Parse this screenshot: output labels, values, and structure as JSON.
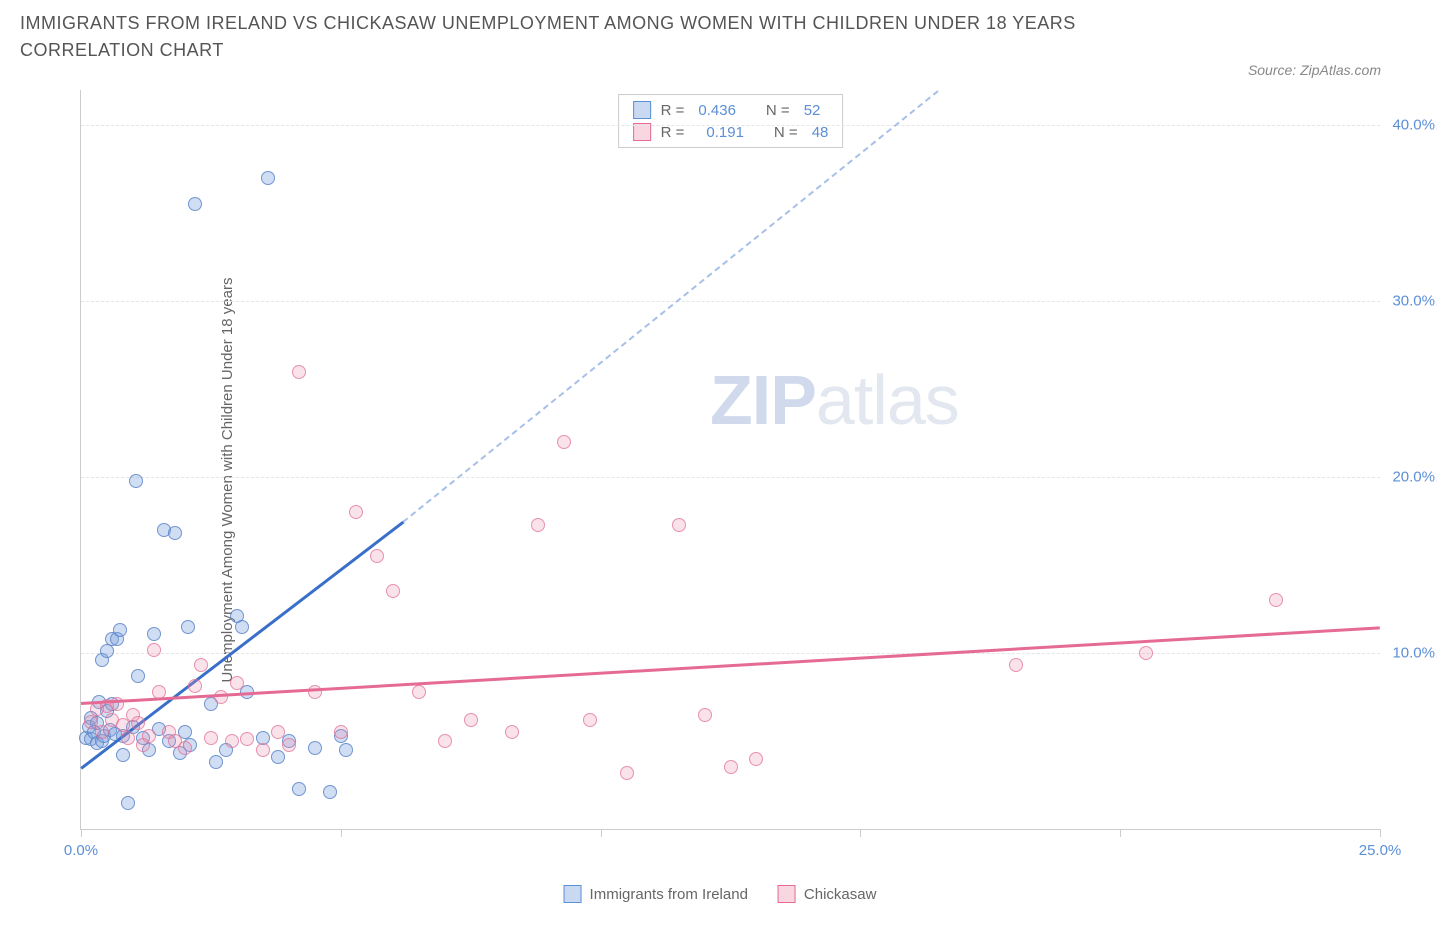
{
  "title": "IMMIGRANTS FROM IRELAND VS CHICKASAW UNEMPLOYMENT AMONG WOMEN WITH CHILDREN UNDER 18 YEARS CORRELATION CHART",
  "source": "Source: ZipAtlas.com",
  "ylabel": "Unemployment Among Women with Children Under 18 years",
  "watermark_zip": "ZIP",
  "watermark_atlas": "atlas",
  "chart": {
    "type": "scatter",
    "xlim": [
      0,
      25
    ],
    "ylim": [
      0,
      42
    ],
    "x_ticks": [
      0,
      5,
      10,
      15,
      20,
      25
    ],
    "x_tick_labels": [
      "0.0%",
      "",
      "",
      "",
      "",
      "25.0%"
    ],
    "y_gridlines": [
      10,
      20,
      30,
      40
    ],
    "y_tick_labels": [
      "10.0%",
      "20.0%",
      "30.0%",
      "40.0%"
    ],
    "background_color": "#ffffff",
    "grid_color": "#e5e5e5",
    "axis_color": "#cccccc",
    "marker_radius": 7,
    "series": [
      {
        "name": "Immigrants from Ireland",
        "color_fill": "rgba(120,160,220,0.35)",
        "color_stroke": "rgba(90,130,200,0.8)",
        "trend_color": "#3a6fc9",
        "R": 0.436,
        "N": 52,
        "trend_solid": {
          "x1": 0,
          "y1": 3.5,
          "x2": 6.2,
          "y2": 17.5
        },
        "trend_dash": {
          "x1": 6.2,
          "y1": 17.5,
          "x2": 16.5,
          "y2": 42
        },
        "points": [
          [
            0.1,
            5.2
          ],
          [
            0.15,
            5.8
          ],
          [
            0.2,
            5.1
          ],
          [
            0.2,
            6.3
          ],
          [
            0.25,
            5.5
          ],
          [
            0.3,
            4.9
          ],
          [
            0.3,
            6.0
          ],
          [
            0.35,
            7.2
          ],
          [
            0.4,
            5.0
          ],
          [
            0.4,
            9.6
          ],
          [
            0.45,
            5.3
          ],
          [
            0.5,
            6.7
          ],
          [
            0.5,
            10.1
          ],
          [
            0.55,
            5.6
          ],
          [
            0.6,
            7.1
          ],
          [
            0.6,
            10.8
          ],
          [
            0.65,
            5.4
          ],
          [
            0.7,
            10.8
          ],
          [
            0.75,
            11.3
          ],
          [
            0.8,
            5.3
          ],
          [
            0.8,
            4.2
          ],
          [
            0.9,
            1.5
          ],
          [
            1.0,
            5.8
          ],
          [
            1.05,
            19.8
          ],
          [
            1.1,
            8.7
          ],
          [
            1.2,
            5.2
          ],
          [
            1.3,
            4.5
          ],
          [
            1.4,
            11.1
          ],
          [
            1.5,
            5.7
          ],
          [
            1.6,
            17.0
          ],
          [
            1.7,
            5.0
          ],
          [
            1.8,
            16.8
          ],
          [
            1.9,
            4.3
          ],
          [
            2.0,
            5.5
          ],
          [
            2.05,
            11.5
          ],
          [
            2.1,
            4.8
          ],
          [
            2.2,
            35.5
          ],
          [
            2.5,
            7.1
          ],
          [
            2.6,
            3.8
          ],
          [
            2.8,
            4.5
          ],
          [
            3.0,
            12.1
          ],
          [
            3.1,
            11.5
          ],
          [
            3.2,
            7.8
          ],
          [
            3.5,
            5.2
          ],
          [
            3.6,
            37.0
          ],
          [
            3.8,
            4.1
          ],
          [
            4.0,
            5.0
          ],
          [
            4.2,
            2.3
          ],
          [
            4.5,
            4.6
          ],
          [
            4.8,
            2.1
          ],
          [
            5.0,
            5.3
          ],
          [
            5.1,
            4.5
          ]
        ]
      },
      {
        "name": "Chickasaw",
        "color_fill": "rgba(235,140,170,0.25)",
        "color_stroke": "rgba(225,110,150,0.7)",
        "trend_color": "#e56b95",
        "R": 0.191,
        "N": 48,
        "trend_solid": {
          "x1": 0,
          "y1": 7.2,
          "x2": 25,
          "y2": 11.5
        },
        "trend_dash": null,
        "points": [
          [
            0.2,
            6.1
          ],
          [
            0.3,
            6.8
          ],
          [
            0.4,
            5.5
          ],
          [
            0.5,
            7.0
          ],
          [
            0.6,
            6.2
          ],
          [
            0.7,
            7.1
          ],
          [
            0.8,
            5.9
          ],
          [
            0.9,
            5.2
          ],
          [
            1.0,
            6.5
          ],
          [
            1.1,
            6.0
          ],
          [
            1.2,
            4.8
          ],
          [
            1.3,
            5.3
          ],
          [
            1.4,
            10.2
          ],
          [
            1.5,
            7.8
          ],
          [
            1.7,
            5.5
          ],
          [
            1.8,
            5.0
          ],
          [
            2.0,
            4.6
          ],
          [
            2.2,
            8.1
          ],
          [
            2.3,
            9.3
          ],
          [
            2.5,
            5.2
          ],
          [
            2.7,
            7.5
          ],
          [
            2.9,
            5.0
          ],
          [
            3.0,
            8.3
          ],
          [
            3.2,
            5.1
          ],
          [
            3.5,
            4.5
          ],
          [
            3.8,
            5.5
          ],
          [
            4.0,
            4.8
          ],
          [
            4.2,
            26.0
          ],
          [
            4.5,
            7.8
          ],
          [
            5.0,
            5.5
          ],
          [
            5.3,
            18.0
          ],
          [
            5.7,
            15.5
          ],
          [
            6.0,
            13.5
          ],
          [
            6.5,
            7.8
          ],
          [
            7.0,
            5.0
          ],
          [
            7.5,
            6.2
          ],
          [
            8.3,
            5.5
          ],
          [
            8.8,
            17.3
          ],
          [
            9.3,
            22.0
          ],
          [
            9.8,
            6.2
          ],
          [
            10.5,
            3.2
          ],
          [
            11.5,
            17.3
          ],
          [
            12.0,
            6.5
          ],
          [
            12.5,
            3.5
          ],
          [
            13.0,
            4.0
          ],
          [
            18.0,
            9.3
          ],
          [
            20.5,
            10.0
          ],
          [
            23.0,
            13.0
          ]
        ]
      }
    ]
  },
  "stat_box": {
    "r_label": "R =",
    "n_label": "N =",
    "rows": [
      {
        "swatch": "blue",
        "R": "0.436",
        "N": "52"
      },
      {
        "swatch": "pink",
        "R": "0.191",
        "N": "48"
      }
    ]
  },
  "legend": [
    {
      "swatch": "blue",
      "label": "Immigrants from Ireland"
    },
    {
      "swatch": "pink",
      "label": "Chickasaw"
    }
  ]
}
